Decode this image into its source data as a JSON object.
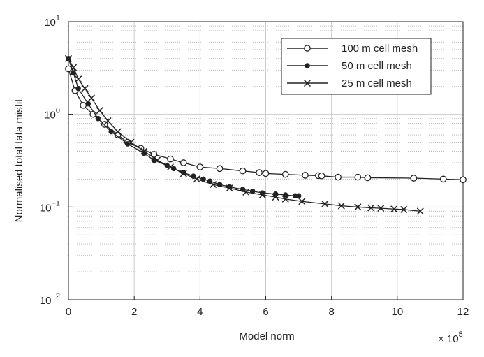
{
  "chart_data": {
    "type": "line",
    "x_label": "Model norm",
    "y_label": "Normalised total tata misfit",
    "x_multiplier": "× 10",
    "x_multiplier_exponent": "5",
    "xlim": [
      0,
      12
    ],
    "xticks": [
      0,
      2,
      4,
      6,
      8,
      10,
      12
    ],
    "ylim": [
      0.01,
      10
    ],
    "yticks": [
      {
        "value": 0.01,
        "label": "10",
        "exponent": "−2"
      },
      {
        "value": 0.1,
        "label": "10",
        "exponent": "−1"
      },
      {
        "value": 1,
        "label": "10",
        "exponent": "0"
      },
      {
        "value": 10,
        "label": "10",
        "exponent": "1"
      }
    ],
    "y_log_scale": true,
    "grid": true,
    "minor_grid": true,
    "legend_position": "upper right",
    "series": [
      {
        "name": "100 m cell mesh",
        "color": "#222222",
        "marker": "open-circle",
        "x": [
          0,
          0.2,
          0.45,
          0.75,
          1.1,
          1.5,
          1.8,
          2.2,
          2.6,
          3.1,
          3.5,
          4.0,
          4.6,
          5.3,
          5.8,
          6.0,
          6.6,
          7.2,
          7.6,
          7.7,
          8.2,
          8.8,
          9.1,
          10.5,
          11.4,
          12
        ],
        "values": [
          3.1,
          1.8,
          1.25,
          1.0,
          0.78,
          0.6,
          0.5,
          0.43,
          0.37,
          0.33,
          0.3,
          0.27,
          0.26,
          0.245,
          0.235,
          0.23,
          0.225,
          0.22,
          0.218,
          0.217,
          0.21,
          0.21,
          0.207,
          0.205,
          0.2,
          0.197
        ]
      },
      {
        "name": "50 m cell mesh",
        "color": "#222222",
        "marker": "filled-circle",
        "x": [
          0,
          0.15,
          0.3,
          0.6,
          0.9,
          1.3,
          1.8,
          2.3,
          2.6,
          3.0,
          3.2,
          3.5,
          3.8,
          4.1,
          4.3,
          4.6,
          4.9,
          5.3,
          5.6,
          5.9,
          6.3,
          6.6,
          6.9,
          7.0
        ],
        "values": [
          4.0,
          2.8,
          1.9,
          1.3,
          0.9,
          0.65,
          0.48,
          0.38,
          0.32,
          0.28,
          0.26,
          0.235,
          0.215,
          0.2,
          0.19,
          0.175,
          0.165,
          0.155,
          0.148,
          0.142,
          0.138,
          0.135,
          0.132,
          0.132
        ]
      },
      {
        "name": "25 m cell mesh",
        "color": "#222222",
        "marker": "cross",
        "x": [
          0,
          0.15,
          0.3,
          0.5,
          0.7,
          0.95,
          1.2,
          1.5,
          1.9,
          2.3,
          2.7,
          3.1,
          3.5,
          3.9,
          4.4,
          4.9,
          5.4,
          5.9,
          6.3,
          6.6,
          7.1,
          7.8,
          8.3,
          8.8,
          9.2,
          9.5,
          9.9,
          10.2,
          10.7
        ],
        "values": [
          4.0,
          3.2,
          2.4,
          1.9,
          1.5,
          1.1,
          0.85,
          0.65,
          0.5,
          0.4,
          0.32,
          0.27,
          0.23,
          0.2,
          0.175,
          0.16,
          0.145,
          0.135,
          0.128,
          0.122,
          0.115,
          0.108,
          0.103,
          0.1,
          0.098,
          0.097,
          0.095,
          0.094,
          0.09
        ]
      }
    ]
  }
}
